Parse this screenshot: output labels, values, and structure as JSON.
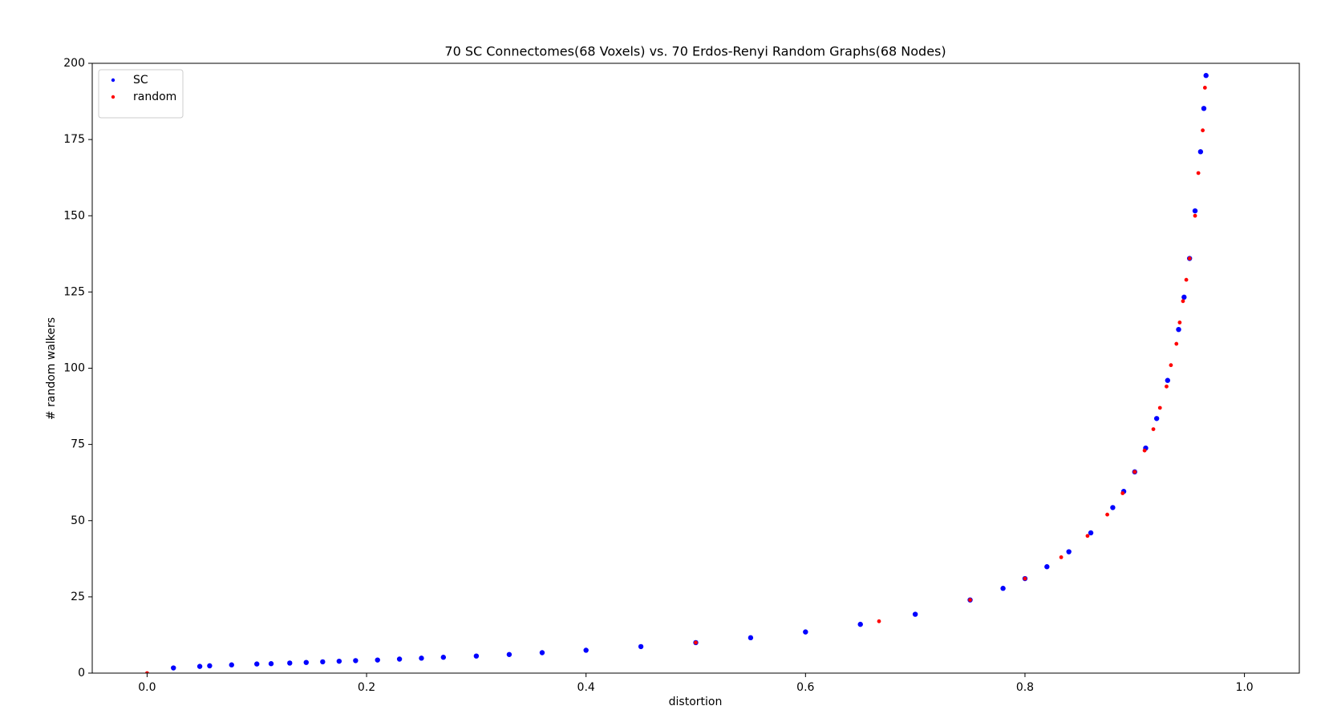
{
  "chart_data": {
    "type": "scatter",
    "title": "70 SC Connectomes(68 Voxels) vs. 70 Erdos-Renyi Random Graphs(68 Nodes)",
    "xlabel": "distortion",
    "ylabel": "# random walkers",
    "xlim": [
      -0.05,
      1.05
    ],
    "ylim": [
      0,
      200
    ],
    "xticks": [
      {
        "value": 0,
        "label": "0.0"
      },
      0.2,
      0.4,
      0.6,
      0.8,
      {
        "value": 1,
        "label": "1.0"
      }
    ],
    "yticks": [
      0,
      25,
      50,
      75,
      100,
      125,
      150,
      175,
      200
    ],
    "grid": false,
    "legend": "upper left",
    "series": [
      {
        "name": "SC",
        "color": "#0000ff",
        "x": [
          0.024,
          0.048,
          0.057,
          0.077,
          0.1,
          0.113,
          0.13,
          0.145,
          0.16,
          0.175,
          0.19,
          0.21,
          0.23,
          0.25,
          0.27,
          0.3,
          0.33,
          0.36,
          0.4,
          0.45,
          0.5,
          0.55,
          0.6,
          0.65,
          0.7,
          0.75,
          0.78,
          0.8,
          0.82,
          0.84,
          0.86,
          0.88,
          0.89,
          0.9,
          0.91,
          0.92,
          0.93,
          0.94,
          0.945,
          0.95,
          0.955,
          0.96,
          0.963,
          0.965
        ],
        "values": [
          1.7,
          2.2,
          2.4,
          2.7,
          3.0,
          3.1,
          3.3,
          3.5,
          3.7,
          3.9,
          4.1,
          4.3,
          4.6,
          4.9,
          5.2,
          5.6,
          6.1,
          6.7,
          7.5,
          8.7,
          10,
          11.6,
          13.5,
          16,
          19.3,
          24,
          27.8,
          31,
          34.9,
          39.8,
          46,
          54.3,
          59.6,
          66,
          73.8,
          83.5,
          96,
          112.7,
          123.3,
          136,
          151.6,
          171,
          185.2,
          196
        ]
      },
      {
        "name": "random",
        "color": "#ff0000",
        "x": [
          0,
          0.5,
          0.667,
          0.75,
          0.8,
          0.833,
          0.857,
          0.875,
          0.889,
          0.9,
          0.909,
          0.917,
          0.923,
          0.929,
          0.933,
          0.938,
          0.941,
          0.944,
          0.947,
          0.95,
          0.955,
          0.958,
          0.962,
          0.964
        ],
        "values": [
          0,
          10,
          17,
          24,
          31,
          38,
          45,
          52,
          59,
          66,
          73,
          80,
          87,
          94,
          101,
          108,
          115,
          122,
          129,
          136,
          150,
          164,
          178,
          192
        ]
      }
    ]
  }
}
